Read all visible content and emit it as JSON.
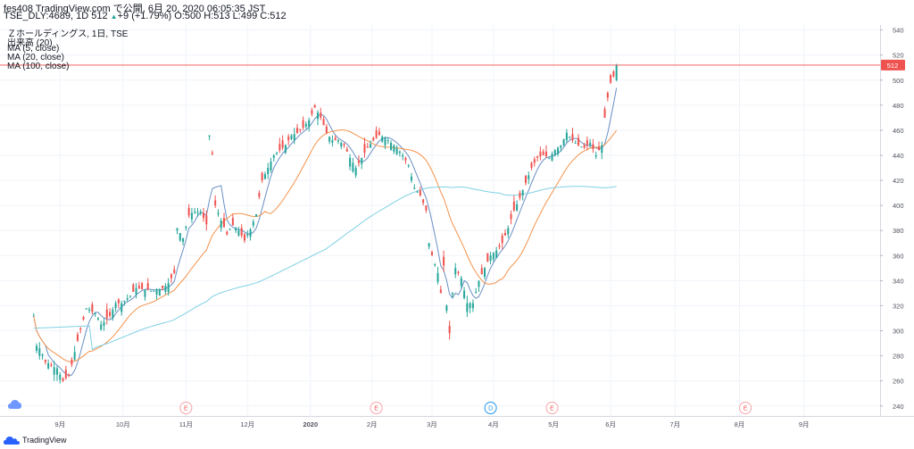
{
  "header": {
    "line1": "fes408 TradingView.com で公開, 6月 20, 2020 06:05:35 JST",
    "symbol": "TSE_DLY:4689, 1D 512",
    "change_arrow": "▲",
    "change": "+9 (+1.79%)",
    "ohlc_label_o": "O:",
    "ohlc_o": "500",
    "ohlc_label_h": "H:",
    "ohlc_h": "513",
    "ohlc_label_l": "L:",
    "ohlc_l": "499",
    "ohlc_label_c": "C:",
    "ohlc_c": "512"
  },
  "legend": {
    "title": "Ｚホールディングス, 1日, TSE",
    "volume": "出来高 (20)",
    "ma5": "MA (5, close)",
    "ma20": "MA (20, close)",
    "ma100": "MA (100, close)"
  },
  "footer": {
    "brand": "TradingView"
  },
  "colors": {
    "up": "#26a69a",
    "down": "#ef5350",
    "ma5": "#6a8fc4",
    "ma20": "#f5924a",
    "ma100": "#7fd0e4",
    "price_line": "#ef5350",
    "grid": "#f0f3fa",
    "axis_text": "#50535e"
  },
  "chart_data": {
    "type": "candlestick",
    "ylim": [
      232,
      544
    ],
    "y_ticks": [
      240,
      260,
      280,
      300,
      320,
      340,
      360,
      380,
      400,
      420,
      440,
      460,
      480,
      500,
      520,
      540
    ],
    "x_ticks": [
      {
        "label": "9月",
        "x": 9
      },
      {
        "label": "10月",
        "x": 30.5
      },
      {
        "label": "11月",
        "x": 52
      },
      {
        "label": "12月",
        "x": 73
      },
      {
        "label": "2020",
        "x": 94.5
      },
      {
        "label": "2月",
        "x": 115.5
      },
      {
        "label": "3月",
        "x": 136
      },
      {
        "label": "4月",
        "x": 157
      },
      {
        "label": "5月",
        "x": 177.5
      },
      {
        "label": "6月",
        "x": 197
      },
      {
        "label": "7月",
        "x": 219
      },
      {
        "label": "8月",
        "x": 241
      },
      {
        "label": "9月",
        "x": 263
      }
    ],
    "x_range": [
      -11.5,
      289
    ],
    "last_price": 512,
    "last_price_label": "512",
    "events": [
      {
        "label": "E",
        "x": 52
      },
      {
        "label": "E",
        "x": 117
      },
      {
        "label": "D",
        "x": 156
      },
      {
        "label": "E",
        "x": 177
      },
      {
        "label": "E",
        "x": 243
      }
    ],
    "close_anchors": [
      [
        0,
        312
      ],
      [
        1,
        288
      ],
      [
        2,
        286
      ],
      [
        4,
        275
      ],
      [
        6,
        272
      ],
      [
        8,
        270
      ],
      [
        10,
        260
      ],
      [
        12,
        264
      ],
      [
        15,
        292
      ],
      [
        18,
        318
      ],
      [
        21,
        314
      ],
      [
        23,
        305
      ],
      [
        26,
        312
      ],
      [
        28,
        322
      ],
      [
        30,
        322
      ],
      [
        33,
        328
      ],
      [
        35,
        334
      ],
      [
        38,
        333
      ],
      [
        41,
        332
      ],
      [
        44,
        334
      ],
      [
        46,
        338
      ],
      [
        48,
        346
      ],
      [
        49,
        382
      ],
      [
        51,
        374
      ],
      [
        53,
        392
      ],
      [
        55,
        395
      ],
      [
        57,
        395
      ],
      [
        59,
        385
      ],
      [
        60,
        456
      ],
      [
        61,
        441
      ],
      [
        62,
        400
      ],
      [
        64,
        388
      ],
      [
        66,
        377
      ],
      [
        68,
        384
      ],
      [
        70,
        380
      ],
      [
        72,
        372
      ],
      [
        74,
        381
      ],
      [
        76,
        393
      ],
      [
        78,
        420
      ],
      [
        80,
        430
      ],
      [
        82,
        440
      ],
      [
        84,
        444
      ],
      [
        86,
        448
      ],
      [
        88,
        456
      ],
      [
        90,
        458
      ],
      [
        92,
        462
      ],
      [
        94,
        468
      ],
      [
        96,
        478
      ],
      [
        98,
        470
      ],
      [
        100,
        458
      ],
      [
        102,
        452
      ],
      [
        104,
        452
      ],
      [
        106,
        448
      ],
      [
        108,
        438
      ],
      [
        110,
        430
      ],
      [
        112,
        438
      ],
      [
        114,
        446
      ],
      [
        116,
        452
      ],
      [
        118,
        456
      ],
      [
        120,
        454
      ],
      [
        122,
        450
      ],
      [
        124,
        446
      ],
      [
        126,
        440
      ],
      [
        128,
        432
      ],
      [
        130,
        414
      ],
      [
        132,
        408
      ],
      [
        134,
        396
      ],
      [
        135,
        370
      ],
      [
        136,
        360
      ],
      [
        138,
        346
      ],
      [
        139,
        330
      ],
      [
        140,
        352
      ],
      [
        141,
        320
      ],
      [
        142,
        298
      ],
      [
        143,
        330
      ],
      [
        144,
        350
      ],
      [
        146,
        342
      ],
      [
        148,
        322
      ],
      [
        150,
        322
      ],
      [
        152,
        340
      ],
      [
        154,
        350
      ],
      [
        156,
        360
      ],
      [
        158,
        364
      ],
      [
        160,
        370
      ],
      [
        162,
        382
      ],
      [
        164,
        396
      ],
      [
        166,
        406
      ],
      [
        168,
        418
      ],
      [
        170,
        430
      ],
      [
        172,
        438
      ],
      [
        174,
        440
      ],
      [
        176,
        438
      ],
      [
        178,
        444
      ],
      [
        180,
        448
      ],
      [
        182,
        458
      ],
      [
        184,
        452
      ],
      [
        186,
        448
      ],
      [
        188,
        446
      ],
      [
        190,
        450
      ],
      [
        192,
        440
      ],
      [
        194,
        448
      ],
      [
        195,
        470
      ],
      [
        196,
        486
      ],
      [
        197,
        498
      ],
      [
        198,
        503
      ],
      [
        199,
        512
      ]
    ],
    "series": [
      {
        "name": "MA (5, close)",
        "color_key": "ma5"
      },
      {
        "name": "MA (20, close)",
        "color_key": "ma20"
      },
      {
        "name": "MA (100, close)",
        "color_key": "ma100"
      }
    ]
  }
}
